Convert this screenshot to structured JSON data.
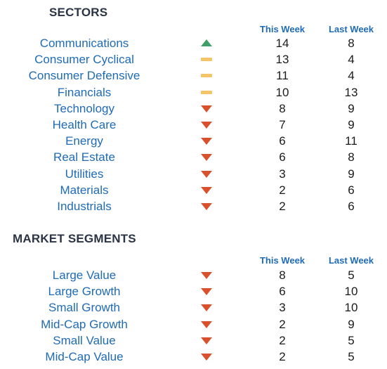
{
  "sectors": {
    "title": "SECTORS",
    "col_this_week": "This Week",
    "col_last_week": "Last Week",
    "rows": [
      {
        "name": "Communications",
        "trend": "up",
        "this_week": "14",
        "last_week": "8"
      },
      {
        "name": "Consumer Cyclical",
        "trend": "flat",
        "this_week": "13",
        "last_week": "4"
      },
      {
        "name": "Consumer Defensive",
        "trend": "flat",
        "this_week": "11",
        "last_week": "4"
      },
      {
        "name": "Financials",
        "trend": "flat",
        "this_week": "10",
        "last_week": "13"
      },
      {
        "name": "Technology",
        "trend": "down",
        "this_week": "8",
        "last_week": "9"
      },
      {
        "name": "Health Care",
        "trend": "down",
        "this_week": "7",
        "last_week": "9"
      },
      {
        "name": "Energy",
        "trend": "down",
        "this_week": "6",
        "last_week": "11"
      },
      {
        "name": "Real Estate",
        "trend": "down",
        "this_week": "6",
        "last_week": "8"
      },
      {
        "name": "Utilities",
        "trend": "down",
        "this_week": "3",
        "last_week": "9"
      },
      {
        "name": "Materials",
        "trend": "down",
        "this_week": "2",
        "last_week": "6"
      },
      {
        "name": "Industrials",
        "trend": "down",
        "this_week": "2",
        "last_week": "6"
      }
    ]
  },
  "segments": {
    "title": "MARKET SEGMENTS",
    "col_this_week": "This Week",
    "col_last_week": "Last Week",
    "rows": [
      {
        "name": "Large Value",
        "trend": "down",
        "this_week": "8",
        "last_week": "5"
      },
      {
        "name": "Large Growth",
        "trend": "down",
        "this_week": "6",
        "last_week": "10"
      },
      {
        "name": "Small Growth",
        "trend": "down",
        "this_week": "3",
        "last_week": "10"
      },
      {
        "name": "Mid-Cap Growth",
        "trend": "down",
        "this_week": "2",
        "last_week": "9"
      },
      {
        "name": "Small Value",
        "trend": "down",
        "this_week": "2",
        "last_week": "5"
      },
      {
        "name": "Mid-Cap Value",
        "trend": "down",
        "this_week": "2",
        "last_week": "5"
      }
    ]
  },
  "colors": {
    "up": "#3f9e6a",
    "flat": "#f2c56b",
    "down": "#d9512c",
    "label": "#1f6bb5",
    "heading": "#2a3444"
  },
  "icons": {
    "up": "triangle-up-icon",
    "flat": "dash-icon",
    "down": "triangle-down-icon"
  }
}
